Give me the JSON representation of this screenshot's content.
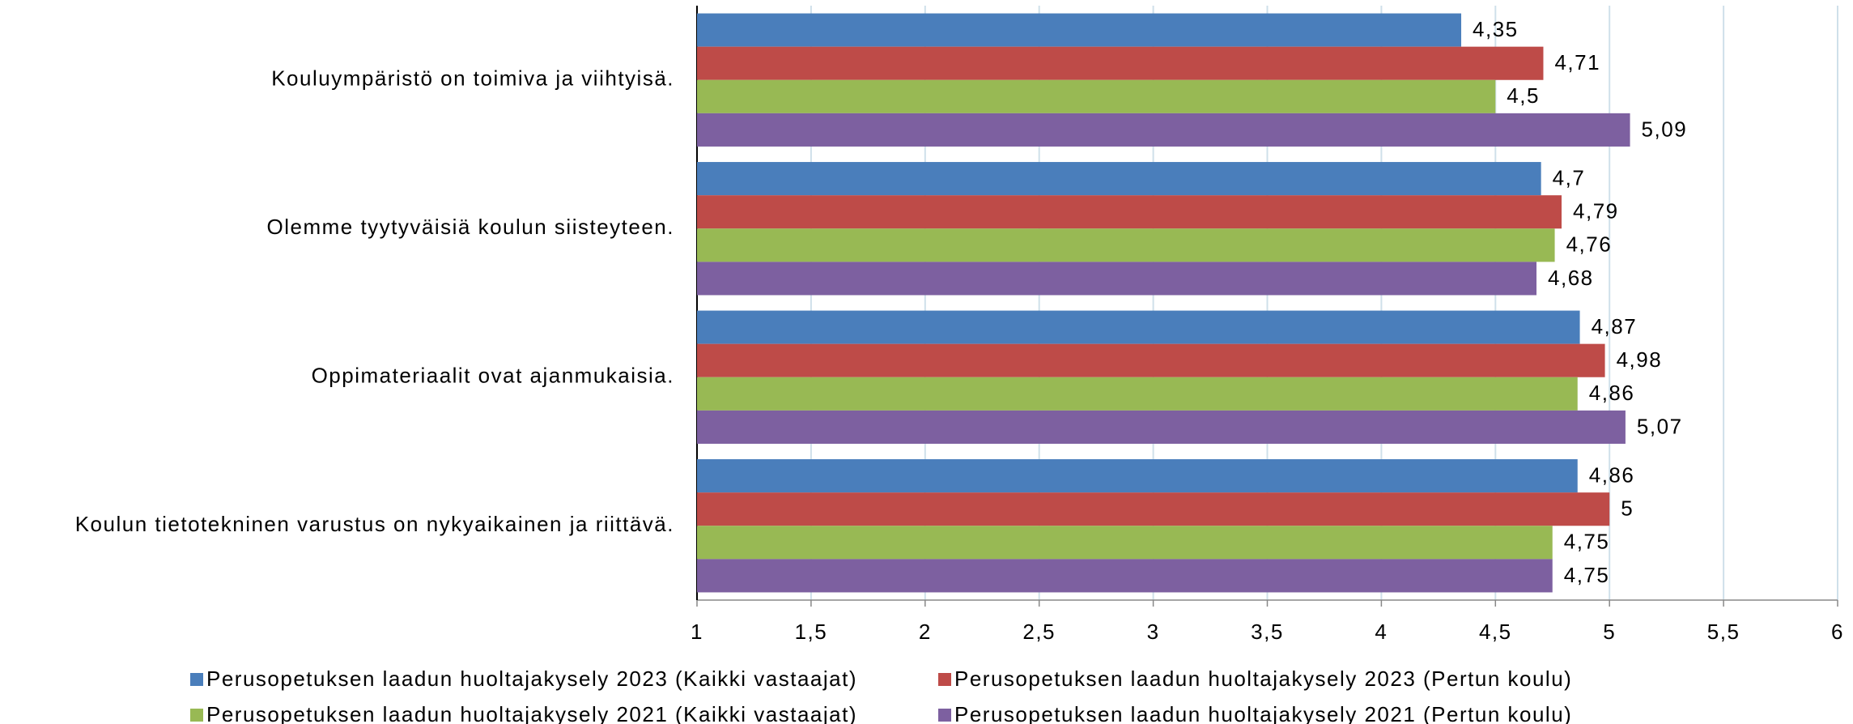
{
  "chart_data": {
    "type": "bar",
    "orientation": "horizontal",
    "categories": [
      "Kouluympäristö on toimiva ja viihtyisä.",
      "Olemme tyytyväisiä koulun siisteyteen.",
      "Oppimateriaalit ovat ajanmukaisia.",
      "Koulun tietotekninen varustus on nykyaikainen ja riittävä."
    ],
    "series": [
      {
        "name": "Perusopetuksen laadun huoltajakysely 2023 (Kaikki vastaajat)",
        "color": "#4a7ebb",
        "values": [
          4.35,
          4.7,
          4.87,
          4.86
        ],
        "value_labels": [
          "4,35",
          "4,7",
          "4,87",
          "4,86"
        ]
      },
      {
        "name": "Perusopetuksen laadun huoltajakysely 2023 (Pertun koulu)",
        "color": "#be4b48",
        "values": [
          4.71,
          4.79,
          4.98,
          5
        ],
        "value_labels": [
          "4,71",
          "4,79",
          "4,98",
          "5"
        ]
      },
      {
        "name": "Perusopetuksen laadun huoltajakysely 2021 (Kaikki vastaajat)",
        "color": "#98b954",
        "values": [
          4.5,
          4.76,
          4.86,
          4.75
        ],
        "value_labels": [
          "4,5",
          "4,76",
          "4,86",
          "4,75"
        ]
      },
      {
        "name": "Perusopetuksen laadun huoltajakysely 2021 (Pertun koulu)",
        "color": "#7d60a0",
        "values": [
          5.09,
          4.68,
          5.07,
          4.75
        ],
        "value_labels": [
          "5,09",
          "4,68",
          "5,07",
          "4,75"
        ]
      }
    ],
    "xlim": [
      1,
      6
    ],
    "xticks": [
      1,
      {
        "value": 1.5,
        "label": "1,5"
      },
      2,
      {
        "value": 2.5,
        "label": "2,5"
      },
      3,
      {
        "value": 3.5,
        "label": "3,5"
      },
      4,
      {
        "value": 4.5,
        "label": "4,5"
      },
      5,
      {
        "value": 5.5,
        "label": "5,5"
      },
      6
    ],
    "grid": true,
    "legend": "bottom"
  }
}
